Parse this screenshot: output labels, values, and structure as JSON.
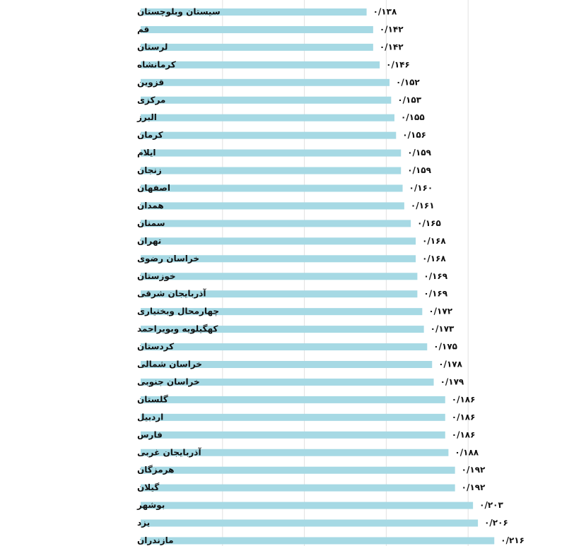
{
  "chart_data": {
    "type": "bar",
    "orientation": "horizontal",
    "title": "",
    "xlabel": "",
    "ylabel": "",
    "xlim": [
      0,
      0.24
    ],
    "grid": true,
    "bar_color": "#a6d9e4",
    "categories": [
      "سیستان وبلوچستان",
      "قم",
      "لرستان",
      "کرمانشاه",
      "قزوین",
      "مرکزی",
      "البرز",
      "کرمان",
      "ایلام",
      "زنجان",
      "اصفهان",
      "همدان",
      "سمنان",
      "تهران",
      "خراسان رضوی",
      "خوزستان",
      "آذربایجان شرقی",
      "چهارمحال وبختیاری",
      "کهگیلویه وبویراحمد",
      "کردستان",
      "خراسان شمالی",
      "خراسان جنوبی",
      "گلستان",
      "اردبیل",
      "فارس",
      "آذربایجان غربی",
      "هرمزگان",
      "گیلان",
      "بوشهر",
      "یزد",
      "مازندران"
    ],
    "values": [
      0.138,
      0.142,
      0.142,
      0.146,
      0.152,
      0.153,
      0.155,
      0.156,
      0.159,
      0.159,
      0.16,
      0.161,
      0.165,
      0.168,
      0.168,
      0.169,
      0.169,
      0.172,
      0.173,
      0.175,
      0.178,
      0.179,
      0.186,
      0.186,
      0.186,
      0.188,
      0.192,
      0.192,
      0.203,
      0.206,
      0.216
    ],
    "value_labels": [
      "۰/۱۳۸",
      "۰/۱۴۲",
      "۰/۱۴۲",
      "۰/۱۴۶",
      "۰/۱۵۲",
      "۰/۱۵۳",
      "۰/۱۵۵",
      "۰/۱۵۶",
      "۰/۱۵۹",
      "۰/۱۵۹",
      "۰/۱۶۰",
      "۰/۱۶۱",
      "۰/۱۶۵",
      "۰/۱۶۸",
      "۰/۱۶۸",
      "۰/۱۶۹",
      "۰/۱۶۹",
      "۰/۱۷۲",
      "۰/۱۷۳",
      "۰/۱۷۵",
      "۰/۱۷۸",
      "۰/۱۷۹",
      "۰/۱۸۶",
      "۰/۱۸۶",
      "۰/۱۸۶",
      "۰/۱۸۸",
      "۰/۱۹۲",
      "۰/۱۹۲",
      "۰/۲۰۳",
      "۰/۲۰۶",
      "۰/۲۱۶"
    ]
  }
}
